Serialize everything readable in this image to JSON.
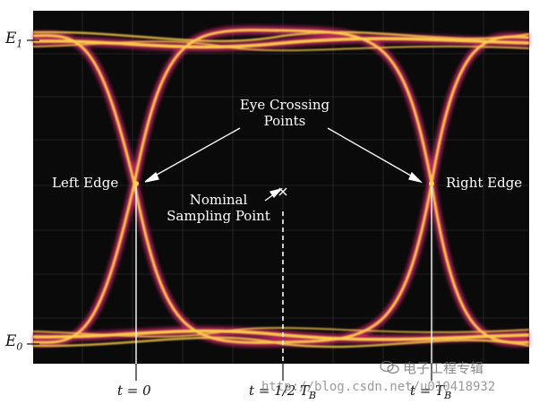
{
  "labels": {
    "e1": "E",
    "e1_sub": "1",
    "e0": "E",
    "e0_sub": "0",
    "crossing_line1": "Eye Crossing",
    "crossing_line2": "Points",
    "left_edge": "Left Edge",
    "right_edge": "Right Edge",
    "nominal_line1": "Nominal",
    "nominal_line2": "Sampling Point",
    "t0": "t = 0",
    "t_half_pre": "t = 1/2 T",
    "t_half_sub": "B",
    "t_full_pre": "t = T",
    "t_full_sub": "B"
  },
  "watermark": {
    "url": "http://blog.csdn.net/u010418932",
    "brand": "电子工程专辑"
  },
  "colors": {
    "scope_background": "#0a0a0a",
    "grid": "#5a5a5a",
    "trace_core": "#ffd24a",
    "trace_outer": "#d02a6a",
    "marker": "#ffffff"
  },
  "icons": {
    "logo": "wechat-logo-icon"
  }
}
